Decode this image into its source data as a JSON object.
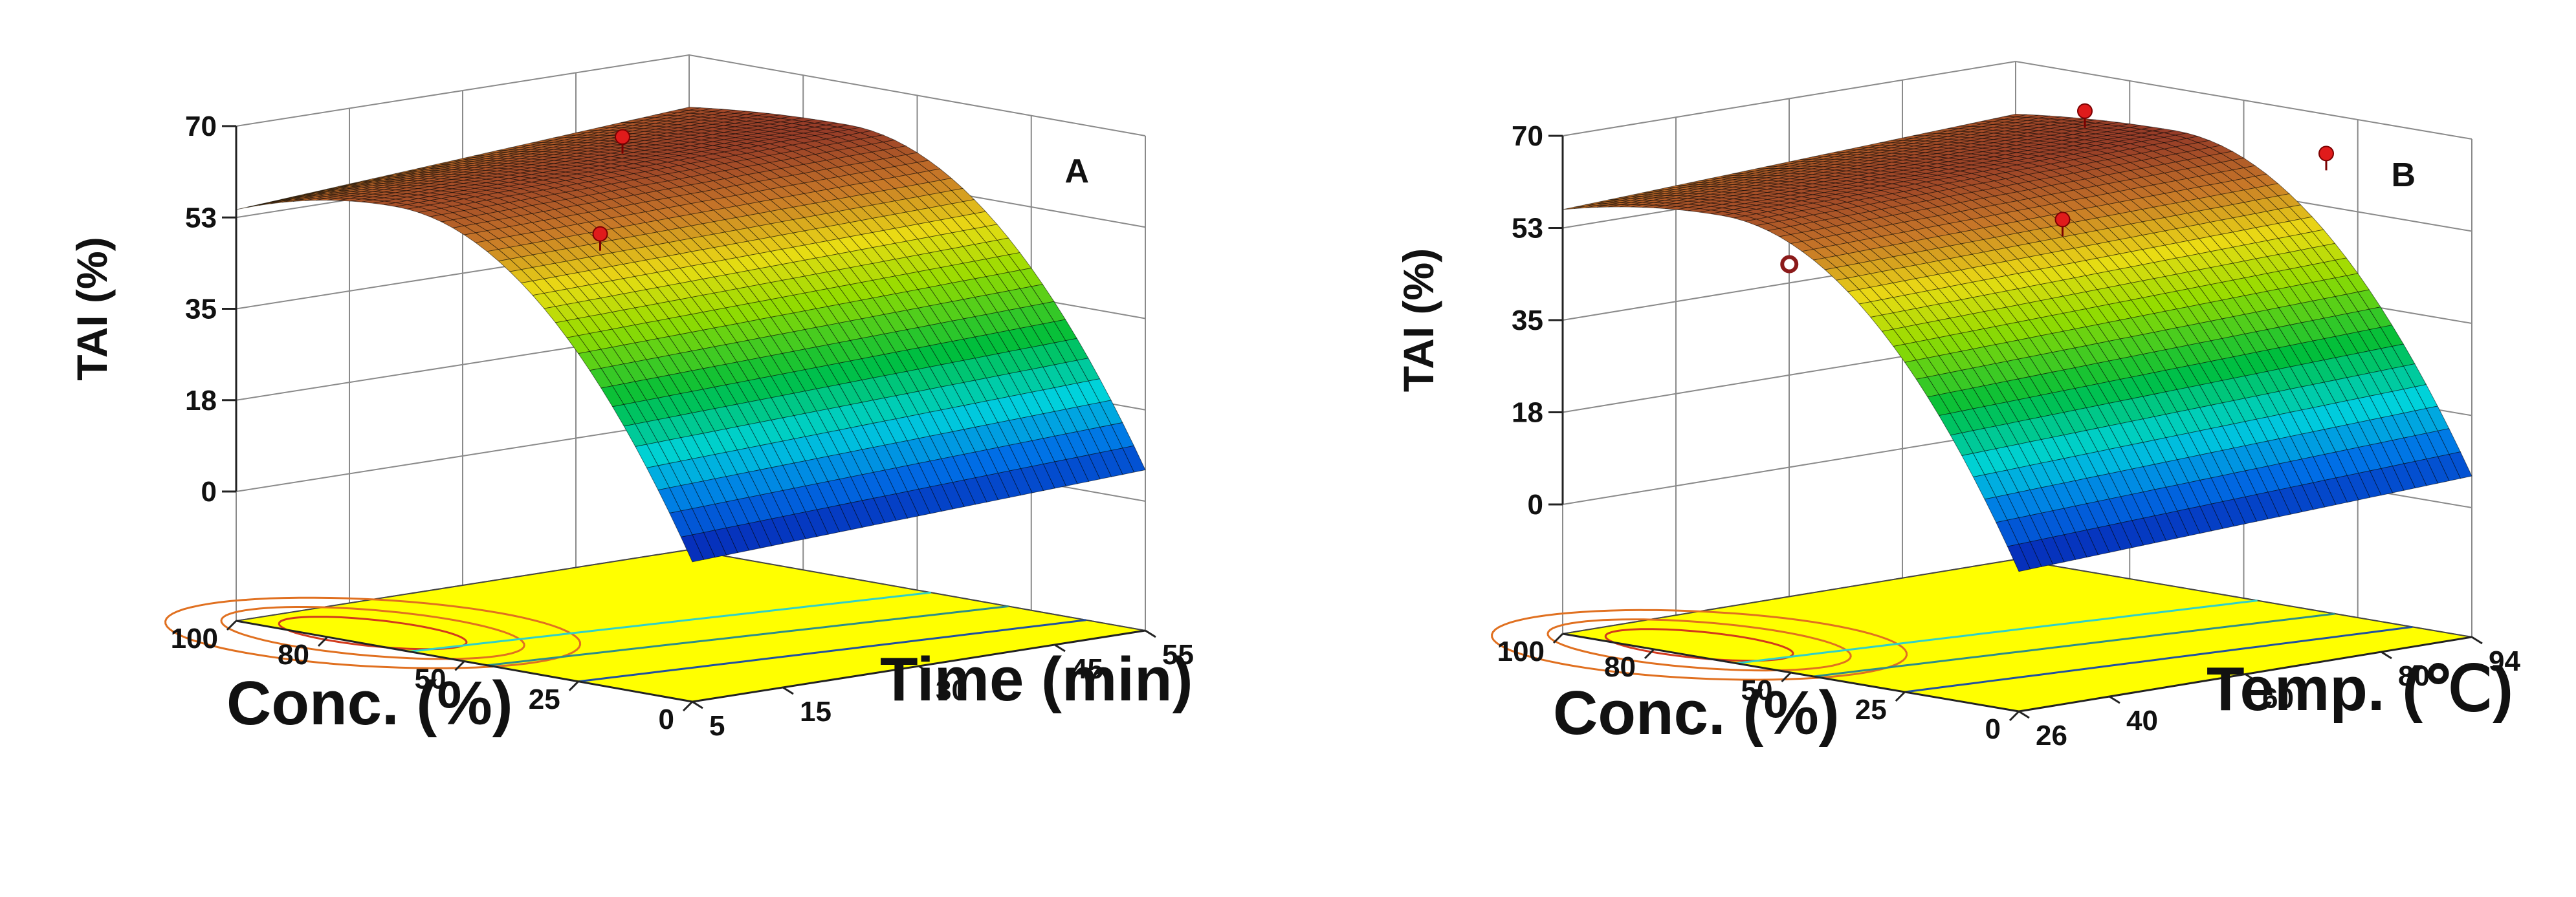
{
  "chart_data": [
    {
      "type": "surface3d",
      "panel_label": "A",
      "zlabel": "TAI (%)",
      "z_ticks": [
        "0",
        "18",
        "35",
        "53",
        "70"
      ],
      "zlim": [
        0,
        70
      ],
      "conc_label": "Conc. (%)",
      "conc_ticks": [
        "0",
        "25",
        "50",
        "80",
        "100"
      ],
      "var_label": "Time (min)",
      "var_ticks": [
        "5",
        "15",
        "30",
        "45",
        "55"
      ],
      "surface_corners": {
        "conc0_var_low": 2,
        "conc100_var_low": 54,
        "conc0_var_high": 6,
        "conc100_var_high": 60
      },
      "peak_conc": 65,
      "design_points": [
        {
          "conc": 60,
          "var": 45,
          "tai": 68
        },
        {
          "conc": 50,
          "var": 30,
          "tai": 53
        }
      ]
    },
    {
      "type": "surface3d",
      "panel_label": "B",
      "zlabel": "TAI (%)",
      "z_ticks": [
        "0",
        "18",
        "35",
        "53",
        "70"
      ],
      "zlim": [
        0,
        70
      ],
      "conc_label": "Conc. (%)",
      "conc_ticks": [
        "0",
        "25",
        "50",
        "80",
        "100"
      ],
      "var_label": "Temp. (℃)",
      "var_ticks": [
        "26",
        "40",
        "60",
        "80",
        "94"
      ],
      "surface_corners": {
        "conc0_var_low": 2,
        "conc100_var_low": 56,
        "conc0_var_high": 6,
        "conc100_var_high": 60
      },
      "peak_conc": 65,
      "design_points": [
        {
          "conc": 60,
          "var": 75,
          "tai": 70
        },
        {
          "conc": 50,
          "var": 60,
          "tai": 53
        },
        {
          "conc": 95,
          "var": 45,
          "tai": 40,
          "hollow": true
        },
        {
          "conc": 20,
          "var": 88,
          "tai": 66
        }
      ]
    }
  ]
}
